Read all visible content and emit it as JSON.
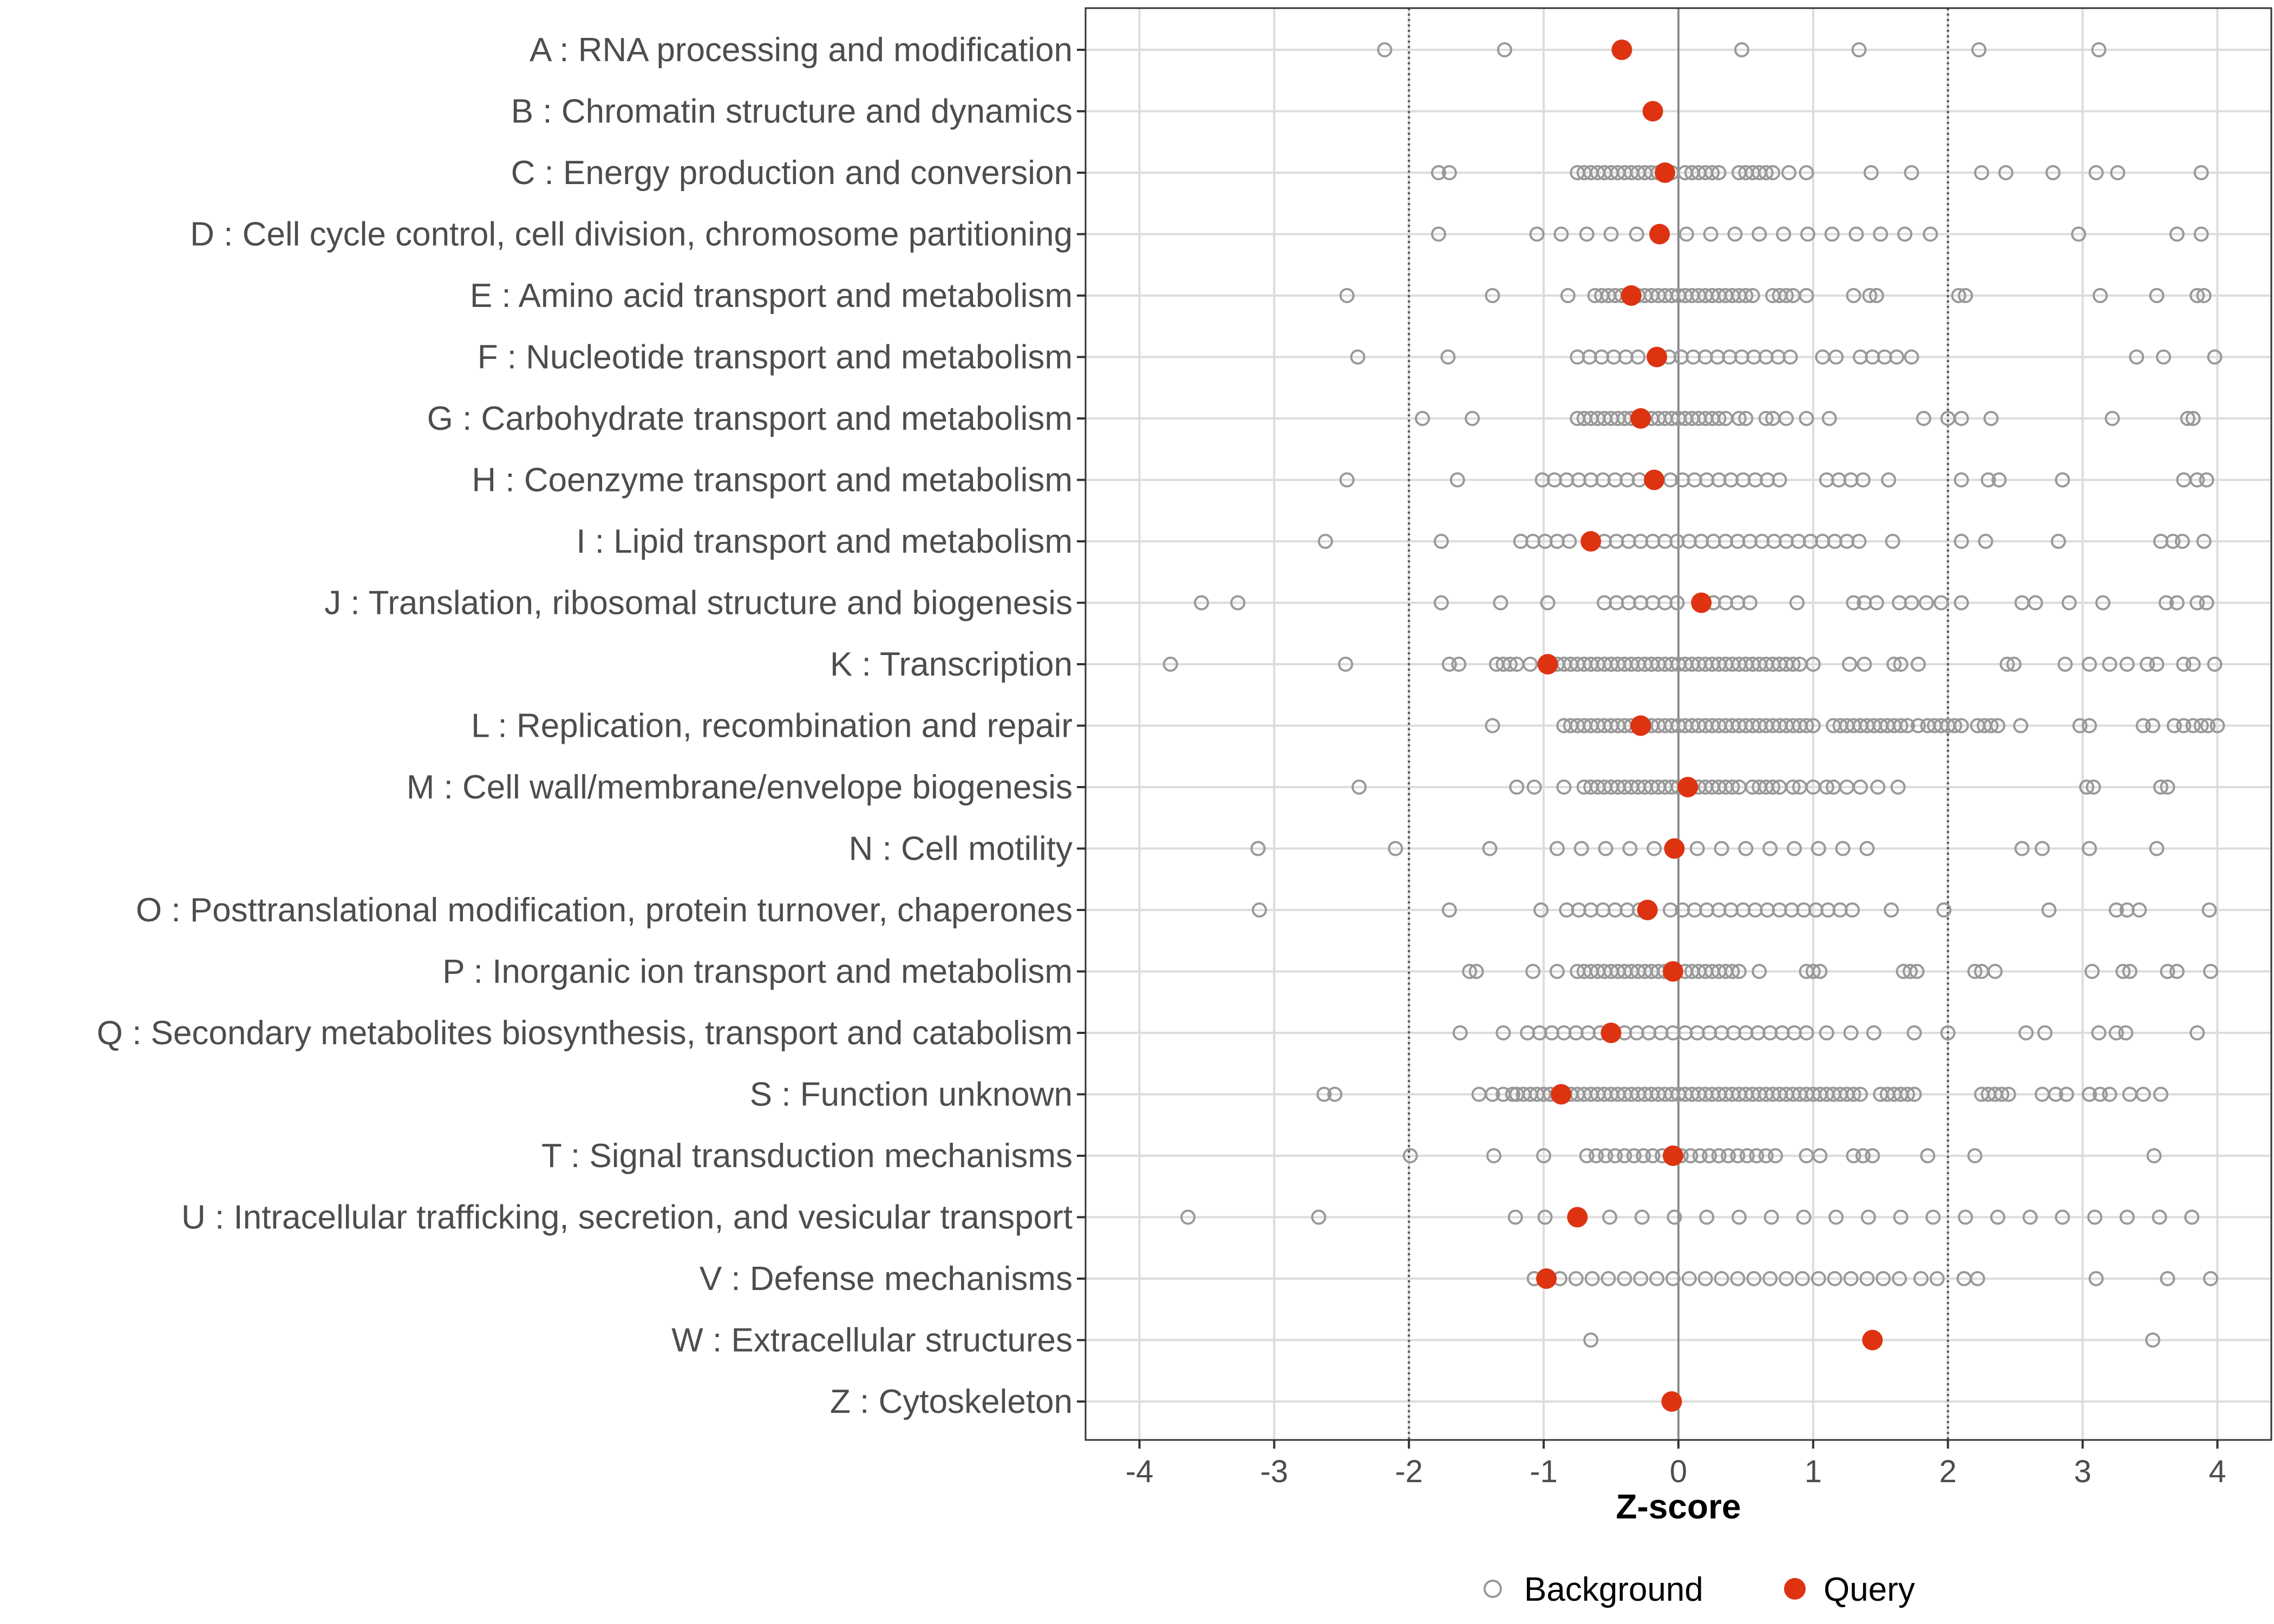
{
  "chart_data": {
    "type": "scatter",
    "title": "",
    "xlabel": "Z-score",
    "ylabel": "",
    "xlim": [
      -4.4,
      4.4
    ],
    "x_ticks": [
      -4,
      -3,
      -2,
      -1,
      0,
      1,
      2,
      3,
      4
    ],
    "x_tick_labels": [
      "-4",
      "-3",
      "-2",
      "-1",
      "0",
      "1",
      "2",
      "3",
      "4"
    ],
    "reference_lines": [
      -2,
      0,
      2
    ],
    "grid": true,
    "legend_position": "bottom",
    "colors": {
      "background": "#999999",
      "query": "#dd3311",
      "gridline": "#dcdcdc",
      "zero_line": "#8c8c8c",
      "frame": "#333333"
    },
    "legend": [
      {
        "key": "background",
        "label": "Background",
        "marker": "open-circle"
      },
      {
        "key": "query",
        "label": "Query",
        "marker": "filled-circle"
      }
    ],
    "categories": [
      {
        "label": "A : RNA processing and modification",
        "query": -0.42,
        "background": [
          -2.18,
          -1.29,
          0.47,
          1.34,
          2.23,
          3.12
        ]
      },
      {
        "label": "B : Chromatin structure and dynamics",
        "query": -0.19,
        "background": []
      },
      {
        "label": "C : Energy production and conversion",
        "query": -0.1,
        "background": [
          -1.78,
          -1.7,
          -0.75,
          -0.7,
          -0.65,
          -0.6,
          -0.55,
          -0.5,
          -0.45,
          -0.4,
          -0.35,
          -0.3,
          -0.25,
          -0.2,
          -0.15,
          -0.05,
          0.05,
          0.1,
          0.15,
          0.2,
          0.25,
          0.3,
          0.45,
          0.5,
          0.55,
          0.6,
          0.65,
          0.7,
          0.82,
          0.95,
          1.43,
          1.73,
          2.25,
          2.43,
          2.78,
          3.1,
          3.26,
          3.88
        ]
      },
      {
        "label": "D : Cell cycle control, cell division, chromosome partitioning",
        "query": -0.14,
        "background": [
          -1.78,
          -1.05,
          -0.87,
          -0.68,
          -0.5,
          -0.31,
          0.06,
          0.24,
          0.42,
          0.6,
          0.78,
          0.96,
          1.14,
          1.32,
          1.5,
          1.68,
          1.87,
          2.97,
          3.7,
          3.88
        ]
      },
      {
        "label": "E : Amino acid transport and metabolism",
        "query": -0.35,
        "background": [
          -2.46,
          -1.38,
          -0.82,
          -0.62,
          -0.57,
          -0.52,
          -0.47,
          -0.42,
          -0.3,
          -0.25,
          -0.2,
          -0.15,
          -0.1,
          -0.05,
          0.0,
          0.05,
          0.1,
          0.15,
          0.2,
          0.25,
          0.3,
          0.35,
          0.4,
          0.45,
          0.5,
          0.55,
          0.7,
          0.75,
          0.8,
          0.85,
          0.95,
          1.3,
          1.42,
          1.47,
          2.08,
          2.13,
          3.13,
          3.55,
          3.85,
          3.9
        ]
      },
      {
        "label": "F : Nucleotide transport and metabolism",
        "query": -0.16,
        "background": [
          -2.38,
          -1.71,
          -0.75,
          -0.66,
          -0.57,
          -0.48,
          -0.39,
          -0.3,
          -0.07,
          0.02,
          0.11,
          0.2,
          0.29,
          0.38,
          0.47,
          0.56,
          0.65,
          0.74,
          0.83,
          1.07,
          1.17,
          1.35,
          1.44,
          1.53,
          1.62,
          1.73,
          3.4,
          3.6,
          3.98
        ]
      },
      {
        "label": "G : Carbohydrate transport and metabolism",
        "query": -0.28,
        "background": [
          -1.9,
          -1.53,
          -0.75,
          -0.7,
          -0.65,
          -0.6,
          -0.55,
          -0.5,
          -0.45,
          -0.4,
          -0.35,
          -0.2,
          -0.15,
          -0.1,
          -0.05,
          0.0,
          0.05,
          0.1,
          0.15,
          0.2,
          0.25,
          0.3,
          0.35,
          0.45,
          0.5,
          0.65,
          0.7,
          0.8,
          0.95,
          1.12,
          1.82,
          2.0,
          2.1,
          2.32,
          3.22,
          3.78,
          3.82
        ]
      },
      {
        "label": "H : Coenzyme transport and metabolism",
        "query": -0.18,
        "background": [
          -2.46,
          -1.64,
          -1.01,
          -0.92,
          -0.83,
          -0.74,
          -0.65,
          -0.56,
          -0.47,
          -0.38,
          -0.29,
          -0.06,
          0.03,
          0.12,
          0.21,
          0.3,
          0.39,
          0.48,
          0.57,
          0.66,
          0.75,
          1.1,
          1.19,
          1.28,
          1.37,
          1.56,
          2.1,
          2.3,
          2.38,
          2.85,
          3.75,
          3.85,
          3.92
        ]
      },
      {
        "label": "I : Lipid transport and metabolism",
        "query": -0.65,
        "background": [
          -2.62,
          -1.76,
          -1.17,
          -1.08,
          -0.99,
          -0.9,
          -0.81,
          -0.55,
          -0.46,
          -0.37,
          -0.28,
          -0.19,
          -0.1,
          -0.01,
          0.08,
          0.17,
          0.26,
          0.35,
          0.44,
          0.53,
          0.62,
          0.71,
          0.8,
          0.89,
          0.98,
          1.07,
          1.16,
          1.25,
          1.34,
          1.59,
          2.1,
          2.28,
          2.82,
          3.58,
          3.67,
          3.74,
          3.9
        ]
      },
      {
        "label": "J : Translation, ribosomal structure and biogenesis",
        "query": 0.17,
        "background": [
          -3.54,
          -3.27,
          -1.76,
          -1.32,
          -0.97,
          -0.55,
          -0.46,
          -0.37,
          -0.28,
          -0.19,
          -0.1,
          -0.01,
          0.26,
          0.35,
          0.44,
          0.53,
          0.88,
          1.3,
          1.38,
          1.47,
          1.64,
          1.73,
          1.84,
          1.95,
          2.1,
          2.55,
          2.65,
          2.9,
          3.15,
          3.62,
          3.7,
          3.85,
          3.92
        ]
      },
      {
        "label": "K : Transcription",
        "query": -0.97,
        "background": [
          -3.77,
          -2.47,
          -1.7,
          -1.63,
          -1.35,
          -1.3,
          -1.25,
          -1.2,
          -1.1,
          -0.9,
          -0.85,
          -0.8,
          -0.75,
          -0.7,
          -0.65,
          -0.6,
          -0.55,
          -0.5,
          -0.45,
          -0.4,
          -0.35,
          -0.3,
          -0.25,
          -0.2,
          -0.15,
          -0.1,
          -0.05,
          0.0,
          0.05,
          0.1,
          0.15,
          0.2,
          0.25,
          0.3,
          0.35,
          0.4,
          0.45,
          0.5,
          0.55,
          0.6,
          0.65,
          0.7,
          0.75,
          0.8,
          0.85,
          0.9,
          1.0,
          1.27,
          1.38,
          1.6,
          1.65,
          1.78,
          2.44,
          2.49,
          2.87,
          3.05,
          3.2,
          3.33,
          3.48,
          3.55,
          3.75,
          3.82,
          3.98
        ]
      },
      {
        "label": "L : Replication, recombination and repair",
        "query": -0.28,
        "background": [
          -1.38,
          -0.85,
          -0.8,
          -0.75,
          -0.7,
          -0.65,
          -0.6,
          -0.55,
          -0.5,
          -0.45,
          -0.4,
          -0.35,
          -0.3,
          -0.25,
          -0.2,
          -0.15,
          -0.1,
          -0.05,
          0.0,
          0.05,
          0.1,
          0.15,
          0.2,
          0.25,
          0.3,
          0.35,
          0.4,
          0.45,
          0.5,
          0.55,
          0.6,
          0.65,
          0.7,
          0.75,
          0.8,
          0.85,
          0.9,
          0.95,
          1.0,
          1.15,
          1.2,
          1.25,
          1.3,
          1.35,
          1.4,
          1.45,
          1.5,
          1.55,
          1.6,
          1.65,
          1.7,
          1.78,
          1.85,
          1.9,
          1.95,
          2.0,
          2.05,
          2.1,
          2.22,
          2.27,
          2.32,
          2.37,
          2.54,
          2.98,
          3.05,
          3.45,
          3.52,
          3.68,
          3.75,
          3.82,
          3.88,
          3.93,
          4.0
        ]
      },
      {
        "label": "M : Cell wall/membrane/envelope biogenesis",
        "query": 0.07,
        "background": [
          -2.37,
          -1.2,
          -1.07,
          -0.85,
          -0.7,
          -0.65,
          -0.6,
          -0.55,
          -0.5,
          -0.45,
          -0.4,
          -0.35,
          -0.3,
          -0.25,
          -0.2,
          -0.15,
          -0.1,
          -0.05,
          0.0,
          0.15,
          0.2,
          0.25,
          0.3,
          0.35,
          0.4,
          0.45,
          0.55,
          0.6,
          0.65,
          0.7,
          0.75,
          0.85,
          0.9,
          1.0,
          1.1,
          1.15,
          1.25,
          1.35,
          1.48,
          1.63,
          3.03,
          3.08,
          3.58,
          3.63
        ]
      },
      {
        "label": "N : Cell motility",
        "query": -0.03,
        "background": [
          -3.12,
          -2.1,
          -1.4,
          -0.9,
          -0.72,
          -0.54,
          -0.36,
          -0.18,
          0.14,
          0.32,
          0.5,
          0.68,
          0.86,
          1.04,
          1.22,
          1.4,
          2.55,
          2.7,
          3.05,
          3.55
        ]
      },
      {
        "label": "O : Posttranslational modification, protein turnover, chaperones",
        "query": -0.23,
        "background": [
          -3.11,
          -1.7,
          -1.02,
          -0.83,
          -0.74,
          -0.65,
          -0.56,
          -0.47,
          -0.38,
          -0.29,
          -0.06,
          0.03,
          0.12,
          0.21,
          0.3,
          0.39,
          0.48,
          0.57,
          0.66,
          0.75,
          0.84,
          0.93,
          1.02,
          1.11,
          1.2,
          1.29,
          1.58,
          1.97,
          2.75,
          3.25,
          3.33,
          3.42,
          3.94
        ]
      },
      {
        "label": "P : Inorganic ion transport and metabolism",
        "query": -0.04,
        "background": [
          -1.55,
          -1.5,
          -1.08,
          -0.9,
          -0.75,
          -0.7,
          -0.65,
          -0.6,
          -0.55,
          -0.5,
          -0.45,
          -0.4,
          -0.35,
          -0.3,
          -0.25,
          -0.2,
          -0.15,
          -0.1,
          0.05,
          0.1,
          0.15,
          0.2,
          0.25,
          0.3,
          0.35,
          0.4,
          0.45,
          0.6,
          0.95,
          1.0,
          1.05,
          1.67,
          1.72,
          1.77,
          2.2,
          2.25,
          2.35,
          3.07,
          3.3,
          3.35,
          3.63,
          3.7,
          3.95
        ]
      },
      {
        "label": "Q : Secondary metabolites biosynthesis, transport and catabolism",
        "query": -0.5,
        "background": [
          -1.62,
          -1.3,
          -1.12,
          -1.03,
          -0.94,
          -0.85,
          -0.76,
          -0.67,
          -0.58,
          -0.4,
          -0.31,
          -0.22,
          -0.13,
          -0.04,
          0.05,
          0.14,
          0.23,
          0.32,
          0.41,
          0.5,
          0.59,
          0.68,
          0.77,
          0.86,
          0.95,
          1.1,
          1.28,
          1.45,
          1.75,
          2.0,
          2.58,
          2.72,
          3.12,
          3.25,
          3.32,
          3.85
        ]
      },
      {
        "label": "S : Function unknown",
        "query": -0.87,
        "background": [
          -2.63,
          -2.55,
          -1.48,
          -1.38,
          -1.3,
          -1.23,
          -1.2,
          -1.15,
          -1.1,
          -1.05,
          -1.0,
          -0.95,
          -0.9,
          -0.8,
          -0.75,
          -0.7,
          -0.65,
          -0.6,
          -0.55,
          -0.5,
          -0.45,
          -0.4,
          -0.35,
          -0.3,
          -0.25,
          -0.2,
          -0.15,
          -0.1,
          -0.05,
          0.0,
          0.05,
          0.1,
          0.15,
          0.2,
          0.25,
          0.3,
          0.35,
          0.4,
          0.45,
          0.5,
          0.55,
          0.6,
          0.65,
          0.7,
          0.75,
          0.8,
          0.85,
          0.9,
          0.95,
          1.0,
          1.05,
          1.1,
          1.15,
          1.2,
          1.25,
          1.3,
          1.35,
          1.5,
          1.55,
          1.6,
          1.65,
          1.7,
          1.75,
          2.25,
          2.3,
          2.35,
          2.4,
          2.45,
          2.7,
          2.8,
          2.88,
          3.05,
          3.13,
          3.2,
          3.35,
          3.45,
          3.58
        ]
      },
      {
        "label": "T : Signal transduction mechanisms",
        "query": -0.04,
        "background": [
          -1.99,
          -1.37,
          -1.0,
          -0.68,
          -0.61,
          -0.54,
          -0.47,
          -0.4,
          -0.33,
          -0.26,
          -0.19,
          -0.12,
          0.02,
          0.09,
          0.16,
          0.23,
          0.3,
          0.37,
          0.44,
          0.51,
          0.58,
          0.65,
          0.72,
          0.95,
          1.05,
          1.3,
          1.37,
          1.44,
          1.85,
          2.2,
          3.53
        ]
      },
      {
        "label": "U : Intracellular trafficking, secretion, and vesicular transport",
        "query": -0.75,
        "background": [
          -3.64,
          -2.67,
          -1.21,
          -0.99,
          -0.51,
          -0.27,
          -0.03,
          0.21,
          0.45,
          0.69,
          0.93,
          1.17,
          1.41,
          1.65,
          1.89,
          2.13,
          2.37,
          2.61,
          2.85,
          3.09,
          3.33,
          3.57,
          3.81
        ]
      },
      {
        "label": "V : Defense mechanisms",
        "query": -0.98,
        "background": [
          -1.07,
          -0.88,
          -0.76,
          -0.64,
          -0.52,
          -0.4,
          -0.28,
          -0.16,
          -0.04,
          0.08,
          0.2,
          0.32,
          0.44,
          0.56,
          0.68,
          0.8,
          0.92,
          1.04,
          1.16,
          1.28,
          1.4,
          1.52,
          1.64,
          1.8,
          1.92,
          2.12,
          2.22,
          3.1,
          3.63,
          3.95
        ]
      },
      {
        "label": "W : Extracellular structures",
        "query": 1.44,
        "background": [
          -0.65,
          3.52
        ]
      },
      {
        "label": "Z : Cytoskeleton",
        "query": -0.05,
        "background": []
      }
    ]
  }
}
